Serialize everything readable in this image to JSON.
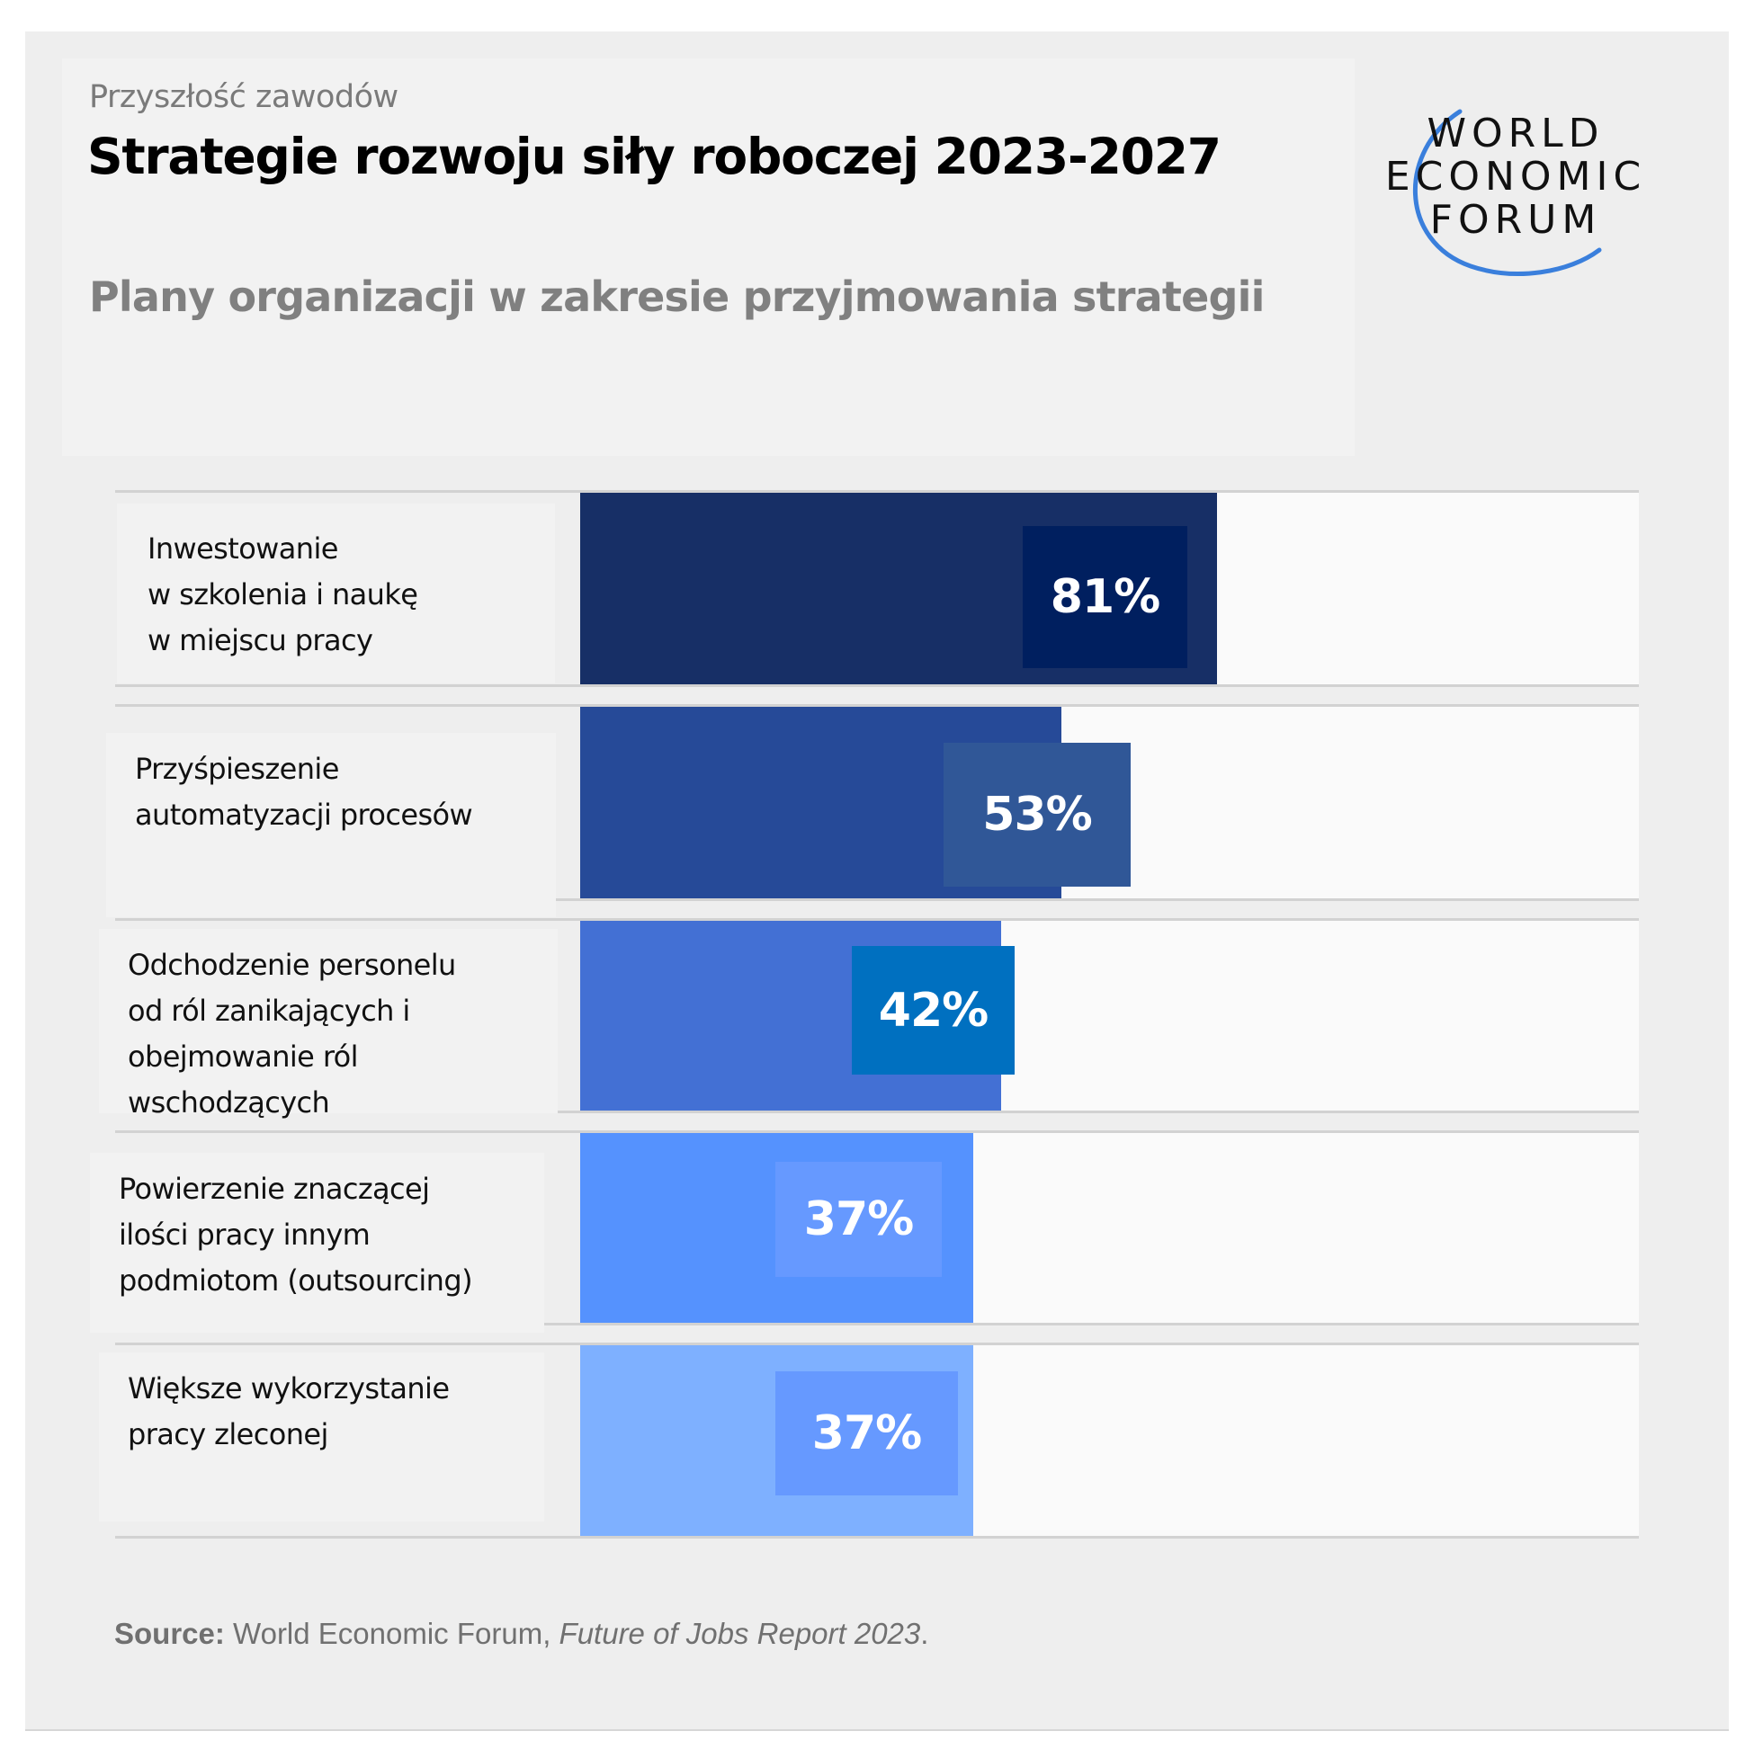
{
  "header": {
    "kicker": "Przyszłość zawodów",
    "title": "Strategie rozwoju siły roboczej 2023-2027",
    "subtitle": "Plany organizacji w zakresie przyjmowania strategii"
  },
  "logo": {
    "lines": [
      "WORLD",
      "ECONOMIC",
      "FORUM"
    ],
    "arc_color": "#3a7fdc"
  },
  "source": {
    "label": "Source:",
    "publisher": " World Economic Forum, ",
    "report": "Future of Jobs Report 2023",
    "end": "."
  },
  "chart_data": {
    "type": "bar",
    "orientation": "horizontal",
    "title": "Strategie rozwoju siły roboczej 2023-2027",
    "subtitle": "Plany organizacji w zakresie przyjmowania strategii",
    "xlabel": "",
    "ylabel": "",
    "unit": "%",
    "categories": [
      "Inwestowanie\nw szkolenia i naukę\nw miejscu pracy",
      "Przyśpieszenie\nautomatyzacji procesów",
      "Odchodzenie personelu\nod ról zanikających i\nobejmowanie ról\nwschodzących",
      "Powierzenie znaczącej\nilości pracy innym\npodmiotom (outsourcing)",
      "Większe wykorzystanie\npracy zleconej"
    ],
    "values": [
      81,
      53,
      42,
      37,
      37
    ],
    "value_labels": [
      "81%",
      "53%",
      "42%",
      "37%",
      "37%"
    ],
    "bar_colors": [
      "#172f66",
      "#264a98",
      "#4370d4",
      "#5592fe",
      "#7eb0ff"
    ],
    "chip_colors": [
      "#001f5f",
      "#305797",
      "#0070c0",
      "#6699ff",
      "#6699ff"
    ],
    "grid": false,
    "legend": "none",
    "source": "Source: World Economic Forum, Future of Jobs Report 2023."
  }
}
